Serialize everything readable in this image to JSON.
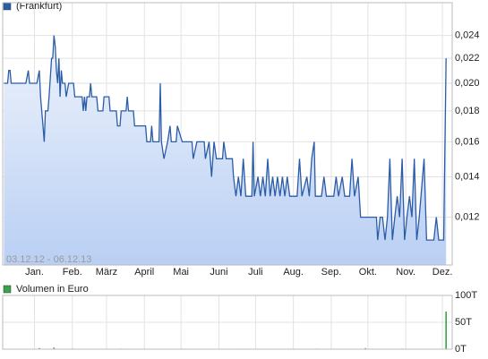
{
  "chart_data": [
    {
      "type": "line",
      "subtitle": "03.12.12 - 06.12.13",
      "log_y": true,
      "grid": true,
      "xlim": [
        3,
        371
      ],
      "xticks": [
        {
          "value": 29,
          "label": "Jan."
        },
        {
          "value": 60,
          "label": "Feb."
        },
        {
          "value": 88,
          "label": "März"
        },
        {
          "value": 119,
          "label": "April"
        },
        {
          "value": 149,
          "label": "Mai"
        },
        {
          "value": 180,
          "label": "Juni"
        },
        {
          "value": 210,
          "label": "Juli"
        },
        {
          "value": 241,
          "label": "Aug."
        },
        {
          "value": 272,
          "label": "Sep."
        },
        {
          "value": 302,
          "label": "Okt."
        },
        {
          "value": 333,
          "label": "Nov."
        },
        {
          "value": 363,
          "label": "Dez."
        }
      ],
      "ylim": [
        0.01,
        0.0272
      ],
      "yticks": [
        {
          "value": 0.012,
          "label": "0,012"
        },
        {
          "value": 0.014,
          "label": "0,014"
        },
        {
          "value": 0.016,
          "label": "0,016"
        },
        {
          "value": 0.018,
          "label": "0,018"
        },
        {
          "value": 0.02,
          "label": "0,020"
        },
        {
          "value": 0.022,
          "label": "0,022"
        },
        {
          "value": 0.024,
          "label": "0,024"
        }
      ],
      "x": [
        4,
        7,
        8,
        9,
        10,
        22,
        24,
        25,
        31,
        33,
        34,
        36,
        37,
        38,
        40,
        41,
        43,
        44,
        45,
        46,
        47,
        48,
        49,
        50,
        51,
        52,
        54,
        55,
        57,
        61,
        62,
        68,
        69,
        70,
        71,
        72,
        74,
        75,
        76,
        80,
        81,
        85,
        86,
        90,
        91,
        96,
        97,
        99,
        100,
        104,
        105,
        106,
        110,
        111,
        120,
        121,
        124,
        125,
        126,
        131,
        132,
        133,
        135,
        138,
        140,
        141,
        145,
        146,
        150,
        158,
        159,
        162,
        168,
        169,
        172,
        174,
        176,
        178,
        183,
        184,
        186,
        191,
        192,
        194,
        196,
        198,
        200,
        202,
        207,
        208,
        209,
        212,
        214,
        216,
        218,
        220,
        222,
        224,
        226,
        228,
        230,
        232,
        234,
        236,
        238,
        244,
        246,
        248,
        252,
        254,
        256,
        258,
        259,
        264,
        266,
        268,
        274,
        276,
        278,
        281,
        283,
        287,
        289,
        291,
        294,
        296,
        309,
        310,
        312,
        314,
        316,
        318,
        320,
        322,
        324,
        326,
        328,
        330,
        332,
        334,
        336,
        338,
        340,
        342,
        344,
        348,
        350,
        356,
        358,
        360,
        364,
        366
      ],
      "series": [
        {
          "name": "(Frankfurt)",
          "color": "#2b5ca8",
          "values": [
            0.02,
            0.02,
            0.021,
            0.021,
            0.02,
            0.02,
            0.021,
            0.02,
            0.02,
            0.021,
            0.019,
            0.017,
            0.016,
            0.018,
            0.018,
            0.019,
            0.022,
            0.022,
            0.024,
            0.023,
            0.021,
            0.02,
            0.022,
            0.019,
            0.021,
            0.02,
            0.02,
            0.019,
            0.02,
            0.02,
            0.019,
            0.019,
            0.018,
            0.019,
            0.018,
            0.019,
            0.019,
            0.02,
            0.019,
            0.019,
            0.018,
            0.018,
            0.019,
            0.019,
            0.018,
            0.018,
            0.017,
            0.017,
            0.018,
            0.018,
            0.019,
            0.018,
            0.018,
            0.017,
            0.017,
            0.016,
            0.016,
            0.017,
            0.016,
            0.016,
            0.02,
            0.016,
            0.015,
            0.016,
            0.017,
            0.016,
            0.016,
            0.017,
            0.016,
            0.016,
            0.015,
            0.016,
            0.016,
            0.015,
            0.016,
            0.014,
            0.016,
            0.015,
            0.015,
            0.016,
            0.015,
            0.015,
            0.014,
            0.013,
            0.014,
            0.013,
            0.015,
            0.013,
            0.013,
            0.016,
            0.013,
            0.014,
            0.013,
            0.014,
            0.013,
            0.015,
            0.013,
            0.014,
            0.013,
            0.014,
            0.013,
            0.014,
            0.013,
            0.014,
            0.013,
            0.013,
            0.015,
            0.013,
            0.014,
            0.013,
            0.015,
            0.016,
            0.013,
            0.013,
            0.014,
            0.013,
            0.013,
            0.014,
            0.013,
            0.014,
            0.013,
            0.013,
            0.015,
            0.013,
            0.014,
            0.012,
            0.012,
            0.011,
            0.012,
            0.012,
            0.011,
            0.012,
            0.015,
            0.011,
            0.012,
            0.013,
            0.012,
            0.015,
            0.011,
            0.012,
            0.013,
            0.012,
            0.015,
            0.011,
            0.012,
            0.015,
            0.011,
            0.011,
            0.012,
            0.011,
            0.011,
            0.022
          ]
        }
      ]
    },
    {
      "type": "bar",
      "xlim": [
        3,
        371
      ],
      "ylim": [
        0,
        100
      ],
      "yticks": [
        {
          "value": 0,
          "label": "0T"
        },
        {
          "value": 50,
          "label": "50T"
        },
        {
          "value": 100,
          "label": "100T"
        }
      ],
      "x": [
        33,
        45,
        60,
        100,
        150,
        200,
        260,
        300,
        330,
        366
      ],
      "series": [
        {
          "name": "Volumen in Euro",
          "color": "#3aa34a",
          "values": [
            2,
            3,
            1,
            1,
            1,
            1,
            1,
            2,
            1,
            70
          ]
        }
      ]
    }
  ]
}
